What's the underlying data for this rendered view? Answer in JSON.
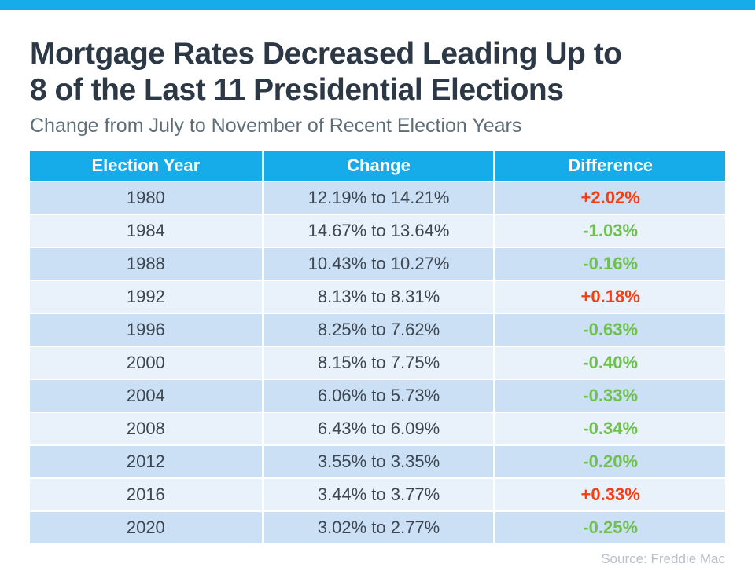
{
  "header": {
    "title_line1": "Mortgage Rates Decreased Leading Up to",
    "title_line2": "8 of the Last 11 Presidential Elections",
    "subtitle": "Change from July to November of Recent Election Years"
  },
  "table": {
    "headers": [
      "Election Year",
      "Change",
      "Difference"
    ],
    "rows": [
      {
        "year": "1980",
        "change": "12.19% to 14.21%",
        "difference": "+2.02%",
        "direction": "up"
      },
      {
        "year": "1984",
        "change": "14.67% to 13.64%",
        "difference": "-1.03%",
        "direction": "down"
      },
      {
        "year": "1988",
        "change": "10.43% to 10.27%",
        "difference": "-0.16%",
        "direction": "down"
      },
      {
        "year": "1992",
        "change": "8.13% to 8.31%",
        "difference": "+0.18%",
        "direction": "up"
      },
      {
        "year": "1996",
        "change": "8.25% to 7.62%",
        "difference": "-0.63%",
        "direction": "down"
      },
      {
        "year": "2000",
        "change": "8.15% to 7.75%",
        "difference": "-0.40%",
        "direction": "down"
      },
      {
        "year": "2004",
        "change": "6.06% to 5.73%",
        "difference": "-0.33%",
        "direction": "down"
      },
      {
        "year": "2008",
        "change": "6.43% to 6.09%",
        "difference": "-0.34%",
        "direction": "down"
      },
      {
        "year": "2012",
        "change": "3.55% to 3.35%",
        "difference": "-0.20%",
        "direction": "down"
      },
      {
        "year": "2016",
        "change": "3.44% to 3.77%",
        "difference": "+0.33%",
        "direction": "up"
      },
      {
        "year": "2020",
        "change": "3.02% to 2.77%",
        "difference": "-0.25%",
        "direction": "down"
      }
    ]
  },
  "source": "Source: Freddie Mac",
  "colors": {
    "accent_blue": "#16ACEA",
    "row_dark": "#CBDFF5",
    "row_light": "#E9F1FB",
    "increase_red": "#FA3C0F",
    "decrease_green": "#6FC04F",
    "title_text": "#2C3845",
    "body_text": "#3C4650",
    "subtitle_text": "#5E6E78",
    "source_text": "#B8C1C9"
  },
  "chart_data": {
    "type": "table",
    "title": "Mortgage Rates Decreased Leading Up to 8 of the Last 11 Presidential Elections",
    "subtitle": "Change from July to November of Recent Election Years",
    "columns": [
      "Election Year",
      "Change",
      "Difference"
    ],
    "rows": [
      [
        "1980",
        "12.19% to 14.21%",
        "+2.02%"
      ],
      [
        "1984",
        "14.67% to 13.64%",
        "-1.03%"
      ],
      [
        "1988",
        "10.43% to 10.27%",
        "-0.16%"
      ],
      [
        "1992",
        "8.13% to 8.31%",
        "+0.18%"
      ],
      [
        "1996",
        "8.25% to 7.62%",
        "-0.63%"
      ],
      [
        "2000",
        "8.15% to 7.75%",
        "-0.40%"
      ],
      [
        "2004",
        "6.06% to 5.73%",
        "-0.33%"
      ],
      [
        "2008",
        "6.43% to 6.09%",
        "-0.34%"
      ],
      [
        "2012",
        "3.55% to 3.35%",
        "-0.20%"
      ],
      [
        "2016",
        "3.44% to 3.77%",
        "+0.33%"
      ],
      [
        "2020",
        "3.02% to 2.77%",
        "-0.25%"
      ]
    ],
    "differences_numeric": [
      2.02,
      -1.03,
      -0.16,
      0.18,
      -0.63,
      -0.4,
      -0.33,
      -0.34,
      -0.2,
      0.33,
      -0.25
    ],
    "source": "Source: Freddie Mac",
    "layout": {
      "row_striping": true,
      "positive_color": "#FA3C0F",
      "negative_color": "#6FC04F"
    }
  }
}
